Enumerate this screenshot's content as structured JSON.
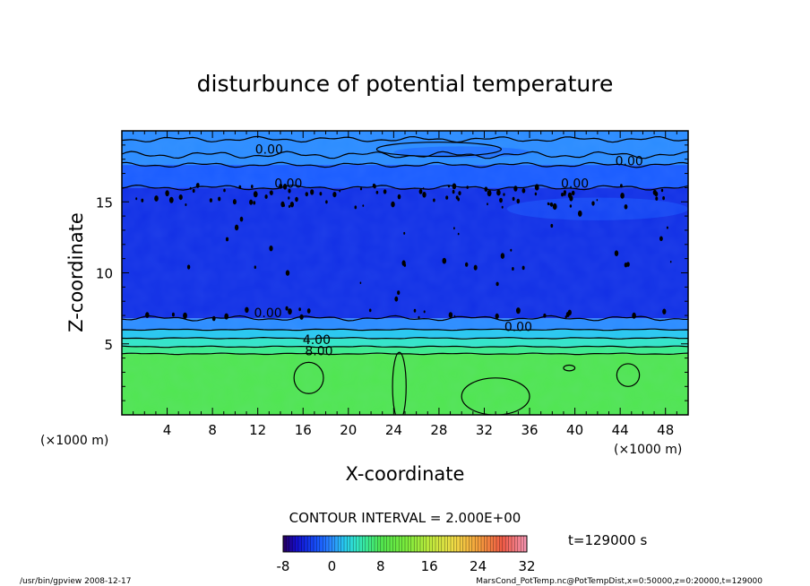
{
  "chart_data": {
    "type": "heatmap",
    "title": "disturbunce of potential temperature",
    "xlabel": "X-coordinate",
    "ylabel": "Z-coordinate",
    "x_unit": "(×1000 m)",
    "y_unit": "(×1000 m)",
    "xlim": [
      0,
      50
    ],
    "ylim": [
      0,
      20
    ],
    "x_ticks": [
      4,
      8,
      12,
      16,
      20,
      24,
      28,
      32,
      36,
      40,
      44,
      48
    ],
    "y_ticks": [
      5,
      10,
      15
    ],
    "layers": [
      {
        "z_bottom": 0,
        "z_top": 4.3,
        "value": 8
      },
      {
        "z_bottom": 4.3,
        "z_top": 4.8,
        "value": 6
      },
      {
        "z_bottom": 4.8,
        "z_top": 5.4,
        "value": 4
      },
      {
        "z_bottom": 5.4,
        "z_top": 6.0,
        "value": 2
      },
      {
        "z_bottom": 6.0,
        "z_top": 6.8,
        "value": 0
      },
      {
        "z_bottom": 6.8,
        "z_top": 16.0,
        "value": -4
      },
      {
        "z_bottom": 16.0,
        "z_top": 17.6,
        "value": -2
      },
      {
        "z_bottom": 17.6,
        "z_top": 20,
        "value": 0
      }
    ],
    "contour_labels": [
      {
        "text": "0.00",
        "x": 13.0,
        "z": 18.7
      },
      {
        "text": "0.00",
        "x": 44.8,
        "z": 17.9
      },
      {
        "text": "0.00",
        "x": 14.7,
        "z": 16.3
      },
      {
        "text": "0.00",
        "x": 40.0,
        "z": 16.3
      },
      {
        "text": "0.00",
        "x": 12.9,
        "z": 7.2
      },
      {
        "text": "0.00",
        "x": 35.0,
        "z": 6.2
      },
      {
        "text": "4.00",
        "x": 17.2,
        "z": 5.3
      },
      {
        "text": "8.00",
        "x": 17.4,
        "z": 4.5
      }
    ],
    "contour_interval": "CONTOUR INTERVAL = 2.000E+00",
    "colorbar": {
      "min": -8,
      "max": 32,
      "ticks": [
        "-8",
        "0",
        "8",
        "16",
        "24",
        "32"
      ]
    },
    "time_label": "t=129000 s"
  },
  "footer": {
    "left": "/usr/bin/gpview   2008-12-17",
    "right": "MarsCond_PotTemp.nc@PotTempDist,x=0:50000,z=0:20000,t=129000"
  },
  "colors": {
    "deep_blue": "#1230e6",
    "mid_blue": "#1a5cff",
    "light_blue": "#2b8cff",
    "cyan": "#28c8f0",
    "teal": "#32e6b4",
    "green": "#50e650"
  }
}
